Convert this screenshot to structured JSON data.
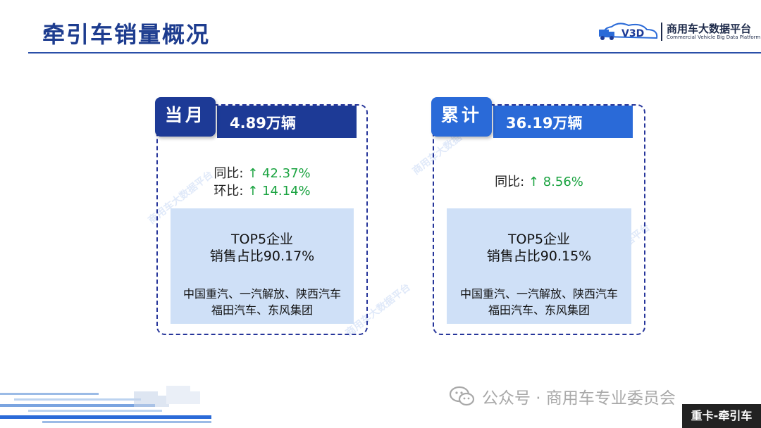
{
  "header": {
    "title": "牵引车销量概况",
    "brand_name": "商用车大数据平台",
    "brand_sub": "Commercial Vehicle Big Data Platform",
    "logo_text": "V3D"
  },
  "monthly": {
    "tag": "当月",
    "value": "4.89万辆",
    "yoy_label": "同比:",
    "yoy_value": "↑ 42.37%",
    "mom_label": "环比:",
    "mom_value": "↑ 14.14%",
    "top5_title": "TOP5企业",
    "top5_share": "销售占比90.17%",
    "top5_line1": "中国重汽、一汽解放、陕西汽车",
    "top5_line2": "福田汽车、东风集团"
  },
  "cumulative": {
    "tag": "累计",
    "value": "36.19万辆",
    "yoy_label": "同比:",
    "yoy_value": "↑ 8.56%",
    "top5_title": "TOP5企业",
    "top5_share": "销售占比90.15%",
    "top5_line1": "中国重汽、一汽解放、陕西汽车",
    "top5_line2": "福田汽车、东风集团"
  },
  "watermark_text": "商用车大数据平台",
  "footer": {
    "wechat_text": "公众号 · 商用车专业委员会",
    "corner_tag": "重卡-牵引车"
  },
  "colors": {
    "primary": "#1d3a96",
    "secondary": "#2a6ad8",
    "positive": "#1aa340",
    "panel": "#cfe0f7"
  },
  "icons": [
    "truck-logo-icon",
    "wechat-icon",
    "truck-silhouette-icon"
  ]
}
